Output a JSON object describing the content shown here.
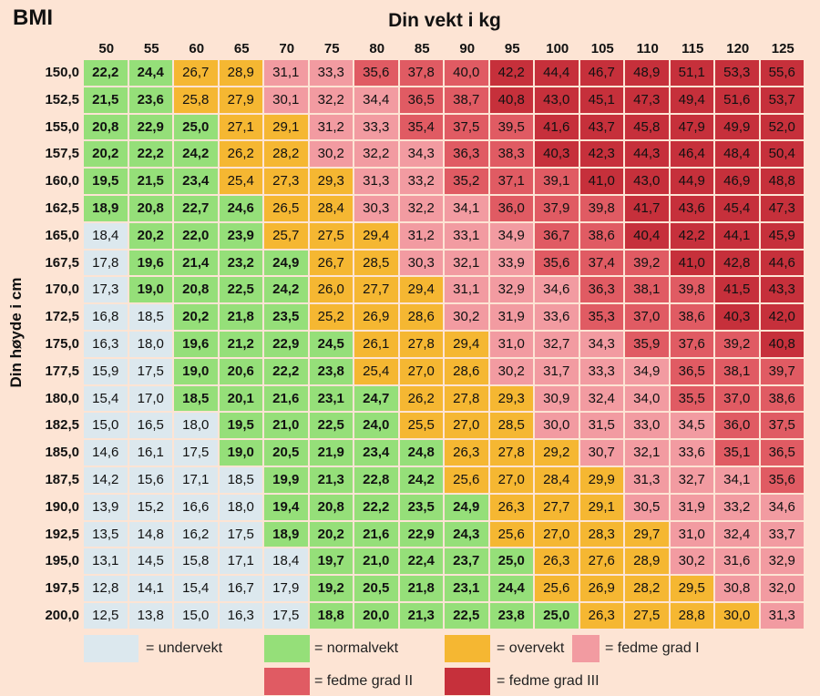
{
  "title": "BMI",
  "x_label": "Din vekt i kg",
  "y_label": "Din høyde i cm",
  "weights": [
    "50",
    "55",
    "60",
    "65",
    "70",
    "75",
    "80",
    "85",
    "90",
    "95",
    "100",
    "105",
    "110",
    "115",
    "120",
    "125"
  ],
  "rows": [
    {
      "height": "150,0",
      "cells": [
        "22,2",
        "24,4",
        "26,7",
        "28,9",
        "31,1",
        "33,3",
        "35,6",
        "37,8",
        "40,0",
        "42,2",
        "44,4",
        "46,7",
        "48,9",
        "51,1",
        "53,3",
        "55,6"
      ]
    },
    {
      "height": "152,5",
      "cells": [
        "21,5",
        "23,6",
        "25,8",
        "27,9",
        "30,1",
        "32,2",
        "34,4",
        "36,5",
        "38,7",
        "40,8",
        "43,0",
        "45,1",
        "47,3",
        "49,4",
        "51,6",
        "53,7"
      ]
    },
    {
      "height": "155,0",
      "cells": [
        "20,8",
        "22,9",
        "25,0",
        "27,1",
        "29,1",
        "31,2",
        "33,3",
        "35,4",
        "37,5",
        "39,5",
        "41,6",
        "43,7",
        "45,8",
        "47,9",
        "49,9",
        "52,0"
      ]
    },
    {
      "height": "157,5",
      "cells": [
        "20,2",
        "22,2",
        "24,2",
        "26,2",
        "28,2",
        "30,2",
        "32,2",
        "34,3",
        "36,3",
        "38,3",
        "40,3",
        "42,3",
        "44,3",
        "46,4",
        "48,4",
        "50,4"
      ]
    },
    {
      "height": "160,0",
      "cells": [
        "19,5",
        "21,5",
        "23,4",
        "25,4",
        "27,3",
        "29,3",
        "31,3",
        "33,2",
        "35,2",
        "37,1",
        "39,1",
        "41,0",
        "43,0",
        "44,9",
        "46,9",
        "48,8"
      ]
    },
    {
      "height": "162,5",
      "cells": [
        "18,9",
        "20,8",
        "22,7",
        "24,6",
        "26,5",
        "28,4",
        "30,3",
        "32,2",
        "34,1",
        "36,0",
        "37,9",
        "39,8",
        "41,7",
        "43,6",
        "45,4",
        "47,3"
      ]
    },
    {
      "height": "165,0",
      "cells": [
        "18,4",
        "20,2",
        "22,0",
        "23,9",
        "25,7",
        "27,5",
        "29,4",
        "31,2",
        "33,1",
        "34,9",
        "36,7",
        "38,6",
        "40,4",
        "42,2",
        "44,1",
        "45,9"
      ]
    },
    {
      "height": "167,5",
      "cells": [
        "17,8",
        "19,6",
        "21,4",
        "23,2",
        "24,9",
        "26,7",
        "28,5",
        "30,3",
        "32,1",
        "33,9",
        "35,6",
        "37,4",
        "39,2",
        "41,0",
        "42,8",
        "44,6"
      ]
    },
    {
      "height": "170,0",
      "cells": [
        "17,3",
        "19,0",
        "20,8",
        "22,5",
        "24,2",
        "26,0",
        "27,7",
        "29,4",
        "31,1",
        "32,9",
        "34,6",
        "36,3",
        "38,1",
        "39,8",
        "41,5",
        "43,3"
      ]
    },
    {
      "height": "172,5",
      "cells": [
        "16,8",
        "18,5",
        "20,2",
        "21,8",
        "23,5",
        "25,2",
        "26,9",
        "28,6",
        "30,2",
        "31,9",
        "33,6",
        "35,3",
        "37,0",
        "38,6",
        "40,3",
        "42,0"
      ]
    },
    {
      "height": "175,0",
      "cells": [
        "16,3",
        "18,0",
        "19,6",
        "21,2",
        "22,9",
        "24,5",
        "26,1",
        "27,8",
        "29,4",
        "31,0",
        "32,7",
        "34,3",
        "35,9",
        "37,6",
        "39,2",
        "40,8"
      ]
    },
    {
      "height": "177,5",
      "cells": [
        "15,9",
        "17,5",
        "19,0",
        "20,6",
        "22,2",
        "23,8",
        "25,4",
        "27,0",
        "28,6",
        "30,2",
        "31,7",
        "33,3",
        "34,9",
        "36,5",
        "38,1",
        "39,7"
      ]
    },
    {
      "height": "180,0",
      "cells": [
        "15,4",
        "17,0",
        "18,5",
        "20,1",
        "21,6",
        "23,1",
        "24,7",
        "26,2",
        "27,8",
        "29,3",
        "30,9",
        "32,4",
        "34,0",
        "35,5",
        "37,0",
        "38,6"
      ]
    },
    {
      "height": "182,5",
      "cells": [
        "15,0",
        "16,5",
        "18,0",
        "19,5",
        "21,0",
        "22,5",
        "24,0",
        "25,5",
        "27,0",
        "28,5",
        "30,0",
        "31,5",
        "33,0",
        "34,5",
        "36,0",
        "37,5"
      ]
    },
    {
      "height": "185,0",
      "cells": [
        "14,6",
        "16,1",
        "17,5",
        "19,0",
        "20,5",
        "21,9",
        "23,4",
        "24,8",
        "26,3",
        "27,8",
        "29,2",
        "30,7",
        "32,1",
        "33,6",
        "35,1",
        "36,5"
      ]
    },
    {
      "height": "187,5",
      "cells": [
        "14,2",
        "15,6",
        "17,1",
        "18,5",
        "19,9",
        "21,3",
        "22,8",
        "24,2",
        "25,6",
        "27,0",
        "28,4",
        "29,9",
        "31,3",
        "32,7",
        "34,1",
        "35,6"
      ]
    },
    {
      "height": "190,0",
      "cells": [
        "13,9",
        "15,2",
        "16,6",
        "18,0",
        "19,4",
        "20,8",
        "22,2",
        "23,5",
        "24,9",
        "26,3",
        "27,7",
        "29,1",
        "30,5",
        "31,9",
        "33,2",
        "34,6"
      ]
    },
    {
      "height": "192,5",
      "cells": [
        "13,5",
        "14,8",
        "16,2",
        "17,5",
        "18,9",
        "20,2",
        "21,6",
        "22,9",
        "24,3",
        "25,6",
        "27,0",
        "28,3",
        "29,7",
        "31,0",
        "32,4",
        "33,7"
      ]
    },
    {
      "height": "195,0",
      "cells": [
        "13,1",
        "14,5",
        "15,8",
        "17,1",
        "18,4",
        "19,7",
        "21,0",
        "22,4",
        "23,7",
        "25,0",
        "26,3",
        "27,6",
        "28,9",
        "30,2",
        "31,6",
        "32,9"
      ]
    },
    {
      "height": "197,5",
      "cells": [
        "12,8",
        "14,1",
        "15,4",
        "16,7",
        "17,9",
        "19,2",
        "20,5",
        "21,8",
        "23,1",
        "24,4",
        "25,6",
        "26,9",
        "28,2",
        "29,5",
        "30,8",
        "32,0"
      ]
    },
    {
      "height": "200,0",
      "cells": [
        "12,5",
        "13,8",
        "15,0",
        "16,3",
        "17,5",
        "18,8",
        "20,0",
        "21,3",
        "22,5",
        "23,8",
        "25,0",
        "26,3",
        "27,5",
        "28,8",
        "30,0",
        "31,3"
      ]
    }
  ],
  "legend": [
    {
      "label": "= undervekt",
      "color": "#dce8ee"
    },
    {
      "label": "= normalvekt",
      "color": "#95df79"
    },
    {
      "label": "= overvekt",
      "color": "#f5b732"
    },
    {
      "label": "= fedme grad I",
      "color": "#f29ba1"
    },
    {
      "label": "= fedme grad II",
      "color": "#e05b63"
    },
    {
      "label": "= fedme grad III",
      "color": "#c6303b"
    }
  ]
}
